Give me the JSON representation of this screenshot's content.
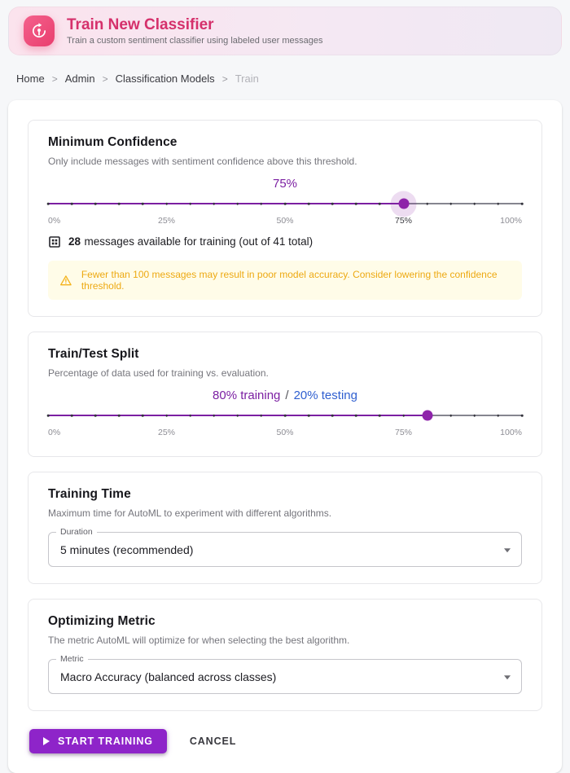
{
  "banner": {
    "title": "Train New Classifier",
    "subtitle": "Train a custom sentiment classifier using labeled user messages"
  },
  "breadcrumb": {
    "items": [
      "Home",
      "Admin",
      "Classification Models",
      "Train"
    ],
    "separator": ">"
  },
  "confidence_card": {
    "title": "Minimum Confidence",
    "description": "Only include messages with sentiment confidence above this threshold.",
    "value_label": "75%",
    "value_percent": 75,
    "marks": [
      "0%",
      "25%",
      "50%",
      "75%",
      "100%"
    ],
    "dataset_count": "28",
    "dataset_text": "messages available for training (out of 41 total)",
    "warning_text": "Fewer than 100 messages may result in poor model accuracy. Consider lowering the confidence threshold."
  },
  "split_card": {
    "title": "Train/Test Split",
    "description": "Percentage of data used for training vs. evaluation.",
    "train_label": "80% training",
    "separator": "/",
    "test_label": "20% testing",
    "value_percent": 80,
    "marks": [
      "0%",
      "25%",
      "50%",
      "75%",
      "100%"
    ]
  },
  "training_time_card": {
    "title": "Training Time",
    "description": "Maximum time for AutoML to experiment with different algorithms.",
    "field_label": "Duration",
    "value": "5 minutes (recommended)"
  },
  "metric_card": {
    "title": "Optimizing Metric",
    "description": "The metric AutoML will optimize for when selecting the best algorithm.",
    "field_label": "Metric",
    "value": "Macro Accuracy (balanced across classes)"
  },
  "actions": {
    "start": "START TRAINING",
    "cancel": "CANCEL"
  },
  "colors": {
    "brand_pink": "#d5306b",
    "accent_purple": "#7b1fa2",
    "thumb_purple": "#8e24aa",
    "button_purple": "#8e24c9",
    "testing_blue": "#2f5fd0",
    "warning_amber": "#eda912",
    "warning_bg": "#fffce8"
  }
}
